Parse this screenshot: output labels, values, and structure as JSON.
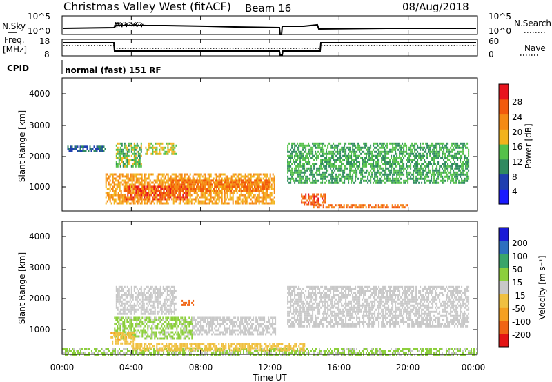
{
  "header": {
    "station": "Christmas Valley West (fitACF)",
    "beam": "Beam 16",
    "date": "08/Aug/2018"
  },
  "mini_panels": {
    "nsky_label": "N.Sky",
    "nsky_ticks": [
      "10^5",
      "10^0"
    ],
    "nsearch_label": "N.Search",
    "nsearch_ticks": [
      "10^5",
      "10^0"
    ],
    "freq_label_1": "Freq.",
    "freq_label_2": "[MHz]",
    "freq_ticks": [
      "18",
      "8"
    ],
    "nave_label": "Nave",
    "nave_ticks": [
      "60",
      "0"
    ],
    "cpid_label": "CPID",
    "cpid_value": "normal (fast) 151 RF"
  },
  "colorbars": {
    "power": {
      "label": "Power [dB]",
      "ticks": [
        "4",
        "8",
        "12",
        "16",
        "20",
        "24",
        "28"
      ],
      "colors": [
        "#1a1aff",
        "#1f3fb0",
        "#2f8a60",
        "#54c14a",
        "#f2b31c",
        "#f58a14",
        "#f25a0c",
        "#e8141e"
      ]
    },
    "velocity": {
      "label": "Velocity [m s⁻¹]",
      "ticks": [
        "200",
        "100",
        "50",
        "15",
        "-15",
        "-50",
        "-100",
        "-200"
      ],
      "colors": [
        "#1a1ad6",
        "#2d6fbf",
        "#3aa56a",
        "#8ccf3c",
        "#c8c8c8",
        "#f0c040",
        "#f5a020",
        "#f06414",
        "#e41414"
      ]
    }
  },
  "axes": {
    "ylabel": "Slant Range [km]",
    "xlabel": "Time UT",
    "yticks": [
      "4000",
      "3000",
      "2000",
      "1000"
    ],
    "xticks": [
      "00:00",
      "04:00",
      "08:00",
      "12:00",
      "16:00",
      "20:00",
      "00:00"
    ]
  },
  "chart_data": [
    {
      "type": "heatmap",
      "title": "Power",
      "x_range_hours": [
        0,
        24
      ],
      "y_range_km": [
        180,
        4500
      ],
      "colorbar_range_db": [
        0,
        32
      ],
      "regions": [
        {
          "t": [
            3.1,
            4.6
          ],
          "r": [
            1600,
            2400
          ],
          "value": 14
        },
        {
          "t": [
            4.8,
            6.6
          ],
          "r": [
            2000,
            2400
          ],
          "value": 16
        },
        {
          "t": [
            2.5,
            12.3
          ],
          "r": [
            400,
            1400
          ],
          "value": 20
        },
        {
          "t": [
            3.6,
            7.2
          ],
          "r": [
            550,
            1000
          ],
          "value": 27
        },
        {
          "t": [
            6.3,
            12.0
          ],
          "r": [
            800,
            1200
          ],
          "value": 24
        },
        {
          "t": [
            13.0,
            23.5
          ],
          "r": [
            1100,
            2400
          ],
          "value": 12
        },
        {
          "t": [
            13.8,
            15.2
          ],
          "r": [
            350,
            750
          ],
          "value": 26
        },
        {
          "t": [
            14.5,
            20.0
          ],
          "r": [
            280,
            400
          ],
          "value": 24
        },
        {
          "t": [
            0.3,
            2.5
          ],
          "r": [
            2100,
            2300
          ],
          "value": 8
        }
      ]
    },
    {
      "type": "heatmap",
      "title": "Velocity",
      "x_range_hours": [
        0,
        24
      ],
      "y_range_km": [
        180,
        4500
      ],
      "colorbar_range_ms": [
        -200,
        200
      ],
      "regions": [
        {
          "t": [
            3.1,
            6.6
          ],
          "r": [
            1500,
            2400
          ],
          "value": 0
        },
        {
          "t": [
            3.0,
            7.5
          ],
          "r": [
            700,
            1400
          ],
          "value": 25
        },
        {
          "t": [
            2.8,
            4.2
          ],
          "r": [
            500,
            900
          ],
          "value": -40
        },
        {
          "t": [
            7.5,
            12.3
          ],
          "r": [
            800,
            1400
          ],
          "value": 0
        },
        {
          "t": [
            6.9,
            7.6
          ],
          "r": [
            1750,
            1950
          ],
          "value": -150
        },
        {
          "t": [
            13.0,
            23.5
          ],
          "r": [
            1100,
            2400
          ],
          "value": 0
        },
        {
          "t": [
            0.0,
            24.0
          ],
          "r": [
            180,
            400
          ],
          "value": 20
        },
        {
          "t": [
            4.0,
            14.0
          ],
          "r": [
            300,
            550
          ],
          "value": -30
        }
      ]
    }
  ]
}
